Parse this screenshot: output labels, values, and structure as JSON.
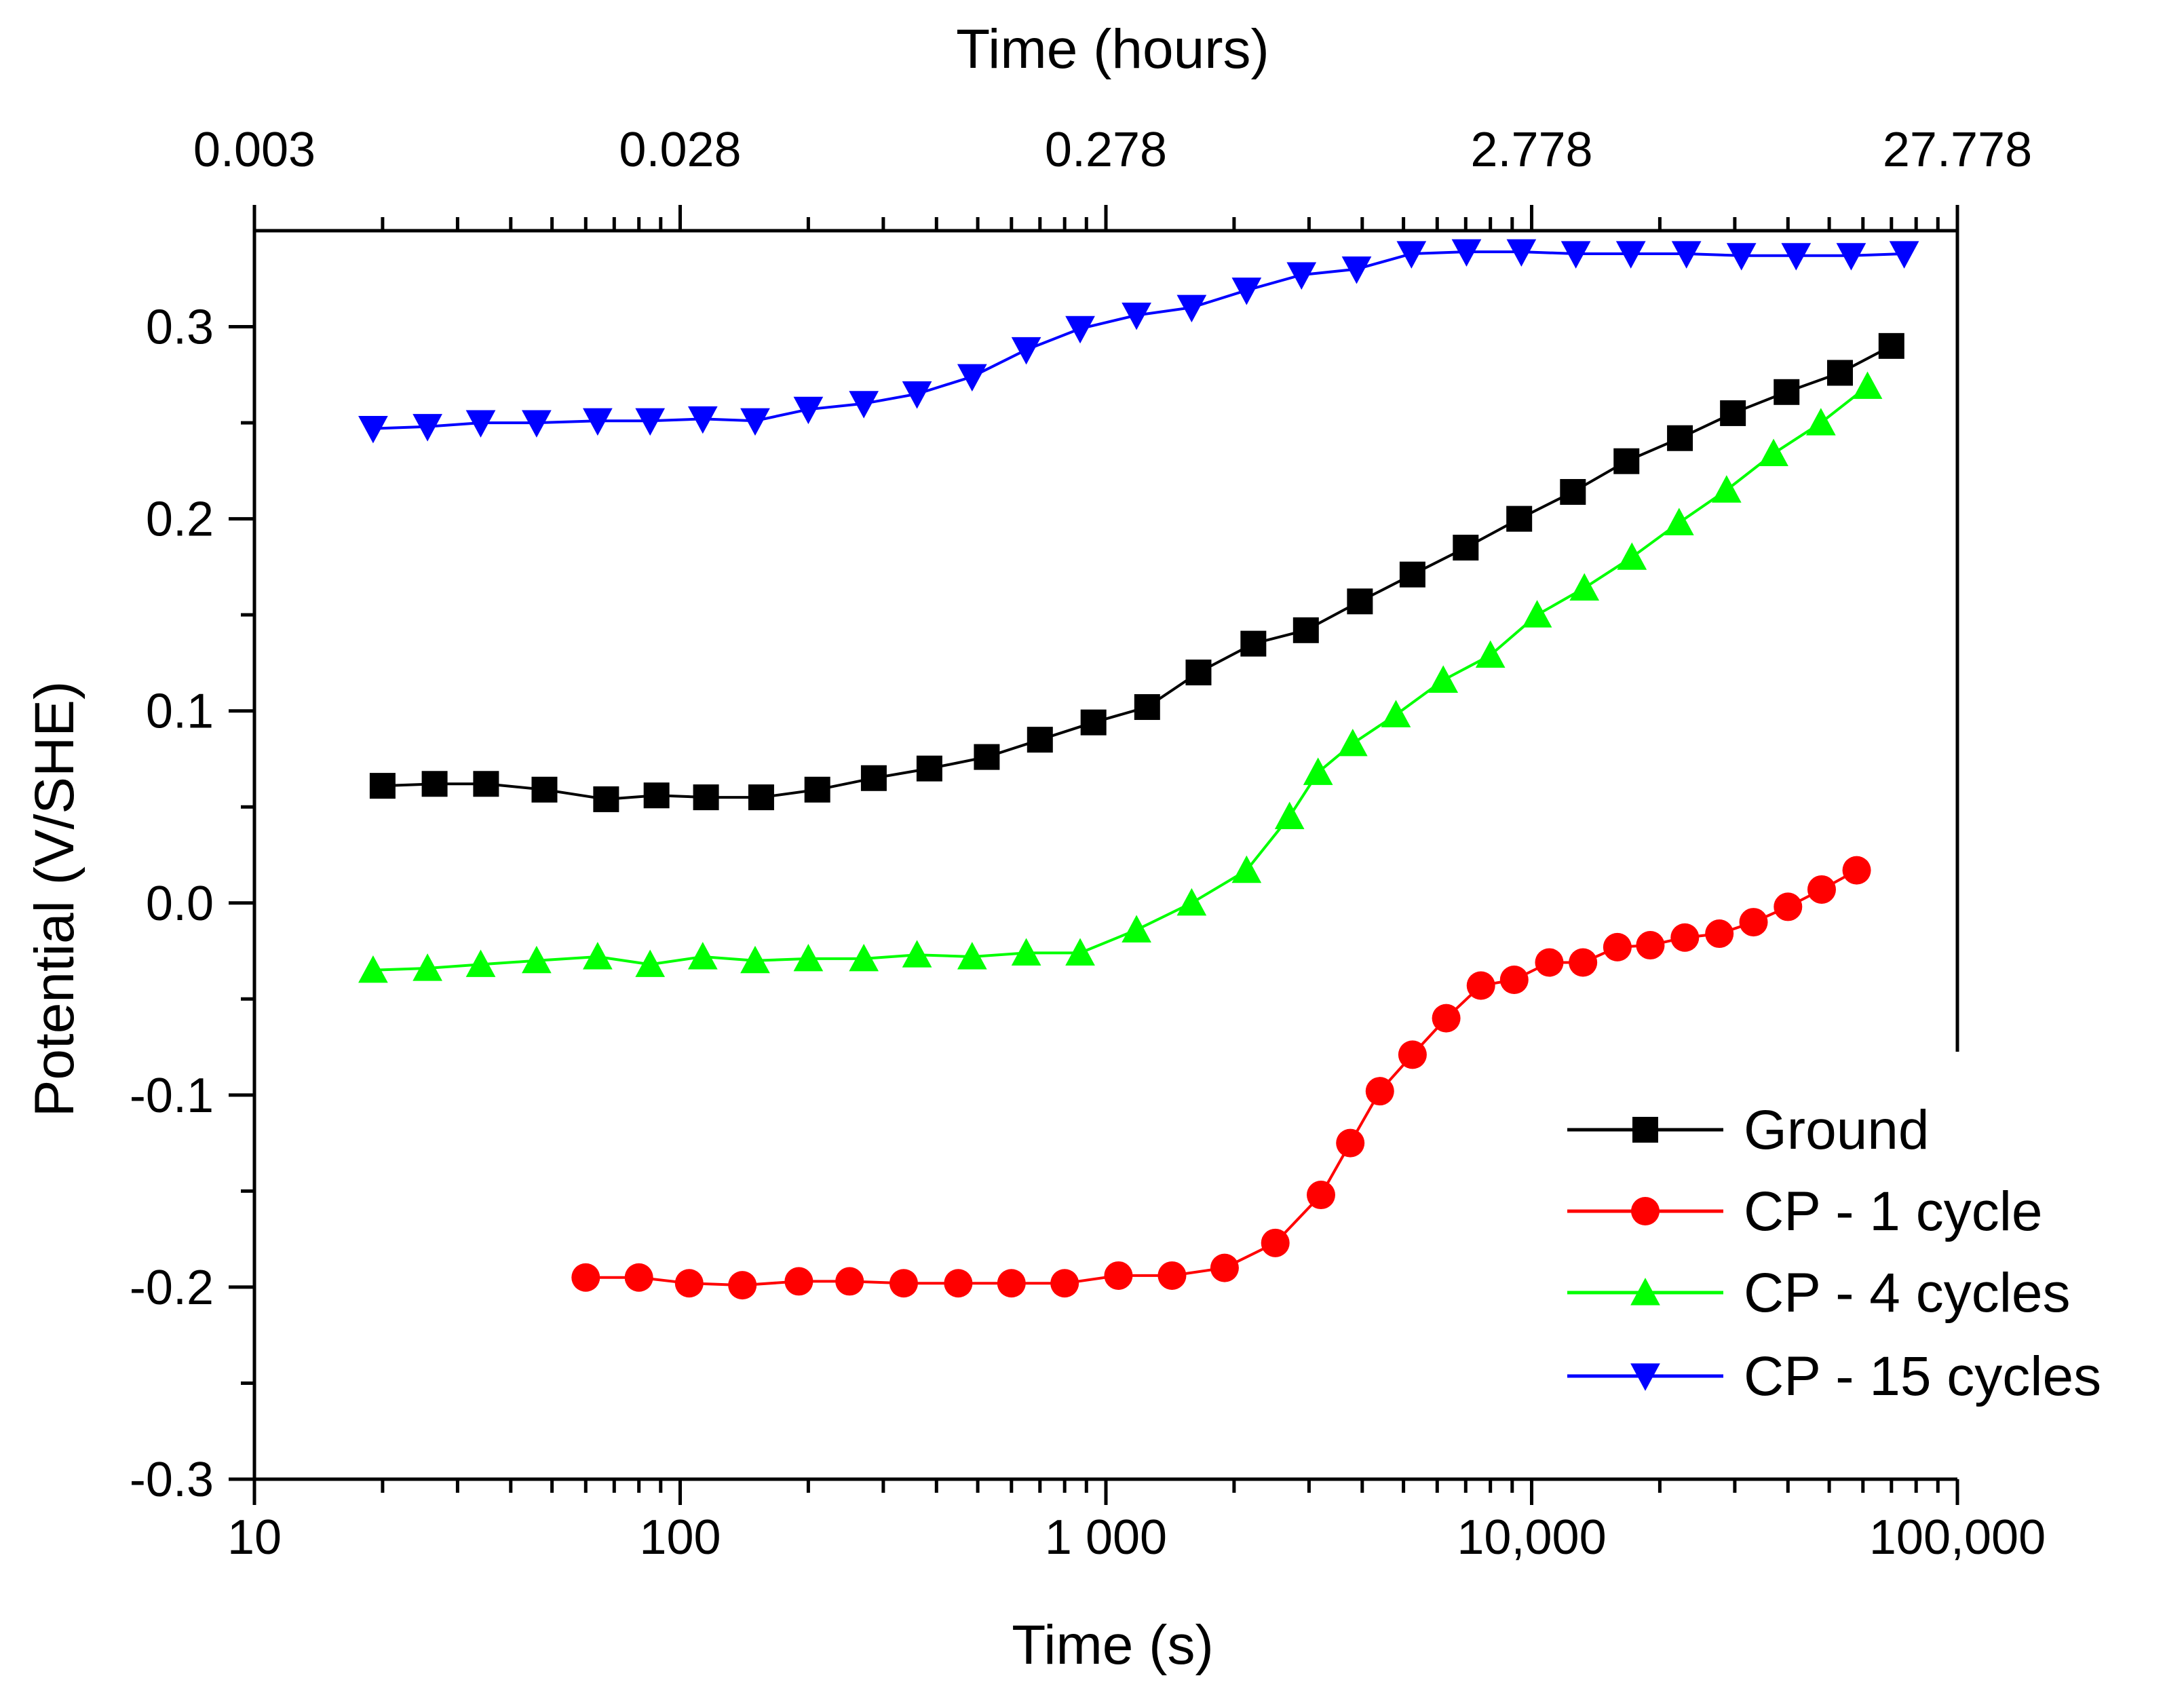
{
  "chart_data": {
    "type": "line",
    "title": "",
    "xlabel": "Time (s)",
    "x2label": "Time (hours)",
    "ylabel": "Potential (V/SHE)",
    "xscale": "log",
    "xlim": [
      10,
      100000
    ],
    "ylim": [
      -0.3,
      0.35
    ],
    "grid": false,
    "legend_position": "bottom-right",
    "x_ticks": [
      10,
      100,
      1000,
      10000,
      100000
    ],
    "x_tick_labels": [
      "10",
      "100",
      "1 000",
      "10,000",
      "100,000"
    ],
    "x2_ticks": [
      10,
      100,
      1000,
      10000,
      100000
    ],
    "x2_tick_labels": [
      "0.003",
      "0.028",
      "0.278",
      "2.778",
      "27.778"
    ],
    "y_ticks": [
      -0.3,
      -0.2,
      -0.1,
      0.0,
      0.1,
      0.2,
      0.3
    ],
    "y_tick_labels": [
      "-0.3",
      "-0.2",
      "-0.1",
      "0.0",
      "0.1",
      "0.2",
      "0.3"
    ],
    "series": [
      {
        "name": "Ground",
        "color": "#000000",
        "marker": "square",
        "x": [
          20,
          26.5,
          35,
          48,
          67,
          88,
          115,
          155,
          210,
          285,
          385,
          525,
          700,
          935,
          1250,
          1650,
          2220,
          2950,
          3950,
          5250,
          7000,
          9350,
          12500,
          16700,
          22300,
          29700,
          39700,
          53000,
          70000
        ],
        "y": [
          0.061,
          0.062,
          0.062,
          0.059,
          0.054,
          0.056,
          0.055,
          0.055,
          0.059,
          0.065,
          0.07,
          0.076,
          0.085,
          0.094,
          0.102,
          0.12,
          0.135,
          0.142,
          0.157,
          0.171,
          0.185,
          0.2,
          0.214,
          0.23,
          0.242,
          0.255,
          0.266,
          0.276,
          0.29
        ]
      },
      {
        "name": "CP - 1 cycle",
        "color": "#ff0000",
        "marker": "circle",
        "x": [
          60,
          80,
          105,
          140,
          190,
          250,
          335,
          450,
          600,
          800,
          1070,
          1430,
          1900,
          2500,
          3200,
          3750,
          4400,
          5250,
          6300,
          7600,
          9100,
          11000,
          13200,
          15900,
          19000,
          22900,
          27600,
          33200,
          40000,
          48000,
          58000
        ],
        "y": [
          -0.195,
          -0.195,
          -0.198,
          -0.199,
          -0.197,
          -0.197,
          -0.198,
          -0.198,
          -0.198,
          -0.198,
          -0.194,
          -0.194,
          -0.19,
          -0.177,
          -0.152,
          -0.125,
          -0.098,
          -0.079,
          -0.06,
          -0.043,
          -0.04,
          -0.031,
          -0.031,
          -0.023,
          -0.022,
          -0.018,
          -0.016,
          -0.01,
          -0.002,
          0.007,
          0.017
        ]
      },
      {
        "name": "CP - 4 cycles",
        "color": "#00ff00",
        "marker": "triangle-up",
        "x": [
          19,
          25.5,
          34,
          46,
          64,
          85,
          113,
          150,
          200,
          270,
          360,
          485,
          650,
          870,
          1180,
          1590,
          2140,
          2700,
          3150,
          3800,
          4800,
          6200,
          8000,
          10300,
          13300,
          17200,
          22200,
          28700,
          37000,
          47800,
          61500
        ],
        "y": [
          -0.035,
          -0.034,
          -0.032,
          -0.03,
          -0.028,
          -0.032,
          -0.028,
          -0.03,
          -0.029,
          -0.029,
          -0.027,
          -0.028,
          -0.026,
          -0.026,
          -0.014,
          0.0,
          0.017,
          0.045,
          0.068,
          0.083,
          0.098,
          0.116,
          0.129,
          0.15,
          0.164,
          0.18,
          0.198,
          0.215,
          0.234,
          0.25,
          0.269
        ]
      },
      {
        "name": "CP - 15 cycles",
        "color": "#0000ff",
        "marker": "triangle-down",
        "x": [
          19,
          25.5,
          34,
          46,
          64,
          85,
          113,
          150,
          200,
          270,
          360,
          485,
          650,
          870,
          1180,
          1590,
          2140,
          2880,
          3880,
          5220,
          7030,
          9460,
          12700,
          17100,
          23100,
          31100,
          41800,
          56300,
          75000
        ],
        "y": [
          0.247,
          0.248,
          0.25,
          0.25,
          0.251,
          0.251,
          0.252,
          0.251,
          0.257,
          0.26,
          0.265,
          0.274,
          0.288,
          0.299,
          0.306,
          0.31,
          0.319,
          0.327,
          0.33,
          0.338,
          0.339,
          0.339,
          0.338,
          0.338,
          0.338,
          0.337,
          0.337,
          0.337,
          0.338
        ]
      }
    ]
  }
}
